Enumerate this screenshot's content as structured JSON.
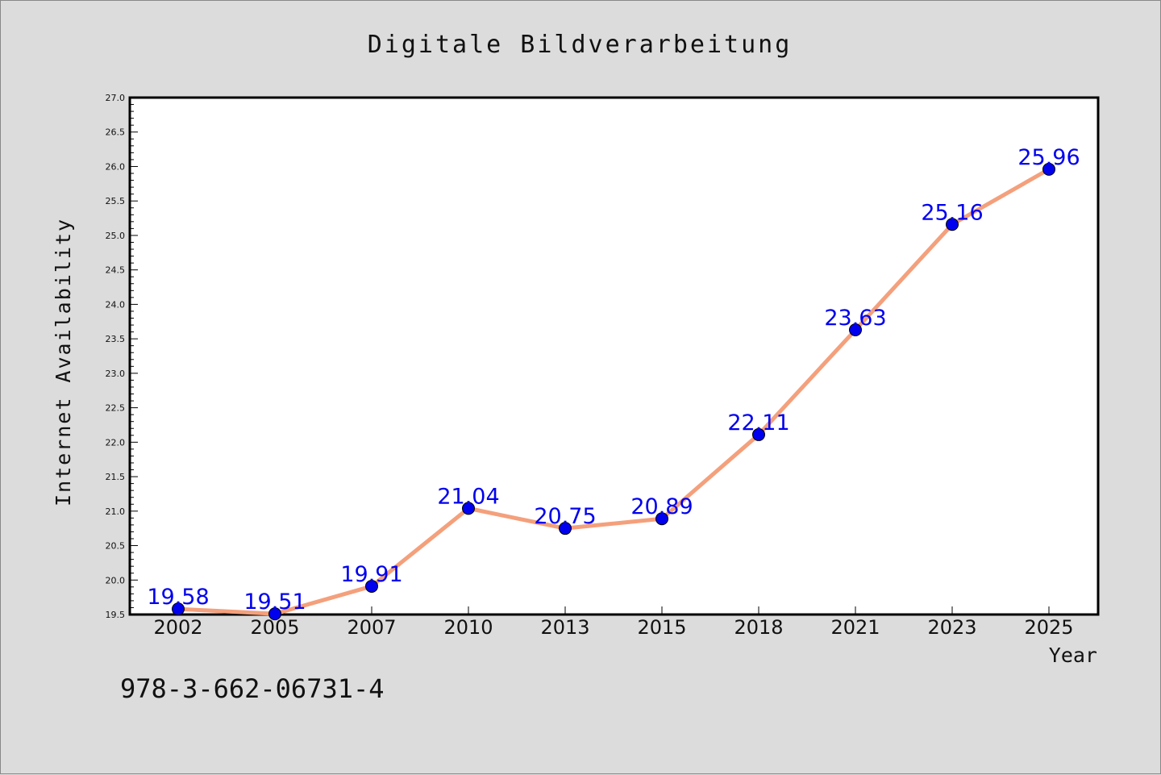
{
  "footer_note": "978-3-662-06731-4",
  "colors": {
    "background": "#dcdcdc",
    "plot_background": "#ffffff",
    "line": "#f4a07c",
    "marker": "#0000ee",
    "data_label": "#0000ee"
  },
  "chart_data": {
    "type": "line",
    "title": "Digitale Bildverarbeitung",
    "xlabel": "Year",
    "ylabel": "Internet Availability",
    "categories": [
      "2002",
      "2005",
      "2007",
      "2010",
      "2013",
      "2015",
      "2018",
      "2021",
      "2023",
      "2025"
    ],
    "series": [
      {
        "values": [
          19.58,
          19.51,
          19.91,
          21.04,
          20.75,
          20.89,
          22.11,
          23.63,
          25.16,
          25.96
        ],
        "labels": [
          "19.58",
          "19.51",
          "19.91",
          "21.04",
          "20.75",
          "20.89",
          "22.11",
          "23.63",
          "25.16",
          "25.96"
        ]
      }
    ],
    "ylim": [
      19.5,
      27.0
    ],
    "yticks": [
      "19.5",
      "20.0",
      "20.5",
      "21.0",
      "21.5",
      "22.0",
      "22.5",
      "23.0",
      "23.5",
      "24.0",
      "24.5",
      "25.0",
      "25.5",
      "26.0",
      "26.5",
      "27.0"
    ],
    "grid": false,
    "legend": false
  }
}
